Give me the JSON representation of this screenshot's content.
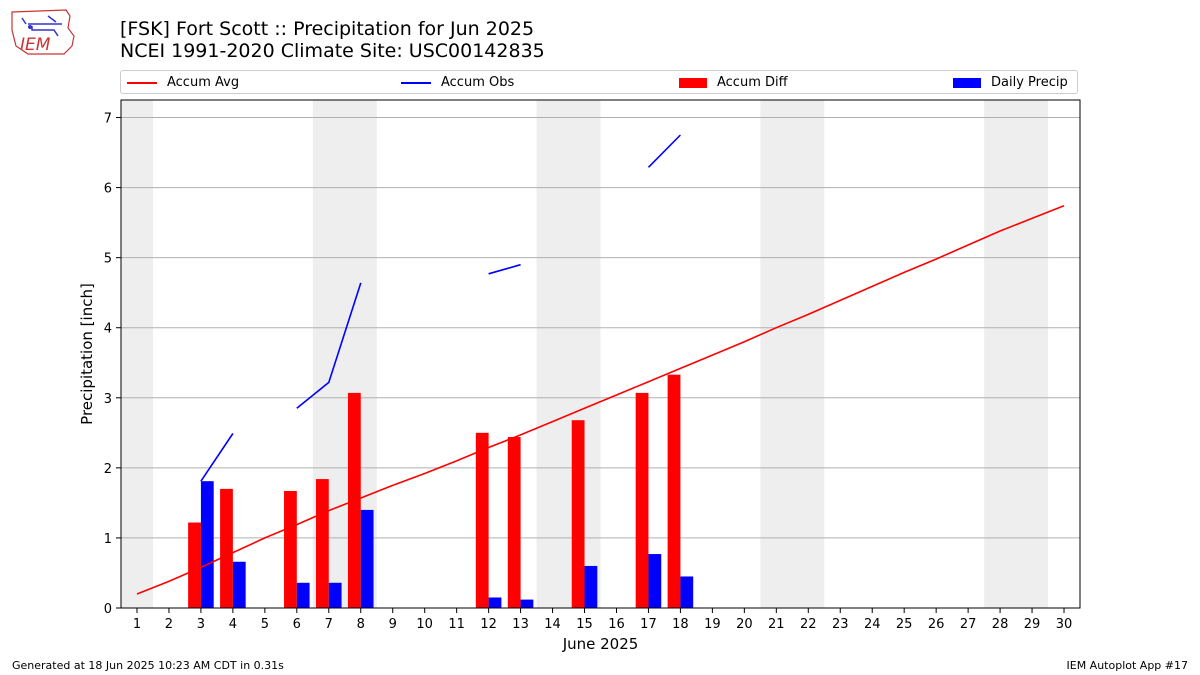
{
  "header": {
    "title_line1": "[FSK] Fort Scott :: Precipitation for Jun 2025",
    "title_line2": "NCEI 1991-2020 Climate Site: USC00142835",
    "logo_text": "IEM"
  },
  "legend": {
    "items": [
      {
        "label": "Accum Avg",
        "kind": "line",
        "color": "#ff0000"
      },
      {
        "label": "Accum Obs",
        "kind": "line",
        "color": "#0000ff"
      },
      {
        "label": "Accum Diff",
        "kind": "box",
        "color": "#ff0000"
      },
      {
        "label": "Daily Precip",
        "kind": "box",
        "color": "#0000ff"
      }
    ]
  },
  "footer": {
    "generated": "Generated at 18 Jun 2025 10:23 AM CDT in 0.31s",
    "app": "IEM Autoplot App #17"
  },
  "chart_data": {
    "type": "bar",
    "title": "[FSK] Fort Scott :: Precipitation for Jun 2025",
    "subtitle": "NCEI 1991-2020 Climate Site: USC00142835",
    "xlabel": "June 2025",
    "ylabel": "Precipitation [inch]",
    "xlim": [
      0.5,
      30.5
    ],
    "ylim": [
      0,
      7.25
    ],
    "yticks": [
      0,
      1,
      2,
      3,
      4,
      5,
      6,
      7
    ],
    "x": [
      1,
      2,
      3,
      4,
      5,
      6,
      7,
      8,
      9,
      10,
      11,
      12,
      13,
      14,
      15,
      16,
      17,
      18,
      19,
      20,
      21,
      22,
      23,
      24,
      25,
      26,
      27,
      28,
      29,
      30
    ],
    "weekend_shading": [
      [
        0.5,
        1.5
      ],
      [
        6.5,
        8.5
      ],
      [
        13.5,
        15.5
      ],
      [
        20.5,
        22.5
      ],
      [
        27.5,
        29.5
      ]
    ],
    "grid": "horizontal",
    "legend_placement": "top",
    "colors": {
      "avg": "#ff0000",
      "obs": "#0000ff",
      "shade": "#eeeeee",
      "grid": "#b0b0b0"
    },
    "series": [
      {
        "name": "Accum Avg",
        "kind": "line",
        "color": "#ff0000",
        "values": [
          0.2,
          0.38,
          0.58,
          0.79,
          1.0,
          1.19,
          1.39,
          1.57,
          1.75,
          1.92,
          2.1,
          2.29,
          2.47,
          2.66,
          2.85,
          3.04,
          3.23,
          3.42,
          3.61,
          3.8,
          4.0,
          4.19,
          4.39,
          4.59,
          4.79,
          4.98,
          5.18,
          5.38,
          5.56,
          5.74
        ]
      },
      {
        "name": "Accum Obs",
        "kind": "line",
        "color": "#0000ff",
        "values": [
          null,
          null,
          1.81,
          2.49,
          null,
          2.85,
          3.22,
          4.64,
          null,
          null,
          null,
          4.77,
          4.9,
          null,
          null,
          null,
          6.29,
          6.75,
          null,
          null,
          null,
          null,
          null,
          null,
          null,
          null,
          null,
          null,
          null,
          null
        ]
      },
      {
        "name": "Accum Diff",
        "kind": "bar",
        "color": "#ff0000",
        "values": [
          null,
          null,
          1.22,
          1.7,
          null,
          1.67,
          1.84,
          3.07,
          null,
          null,
          null,
          2.5,
          2.44,
          null,
          2.68,
          null,
          3.07,
          3.33,
          null,
          null,
          null,
          null,
          null,
          null,
          null,
          null,
          null,
          null,
          null,
          null
        ]
      },
      {
        "name": "Daily Precip",
        "kind": "bar",
        "color": "#0000ff",
        "values": [
          null,
          null,
          1.81,
          0.66,
          null,
          0.36,
          0.36,
          1.4,
          null,
          null,
          null,
          0.15,
          0.12,
          null,
          0.6,
          null,
          0.77,
          0.45,
          null,
          null,
          null,
          null,
          null,
          null,
          null,
          null,
          null,
          null,
          null,
          null
        ]
      }
    ]
  }
}
